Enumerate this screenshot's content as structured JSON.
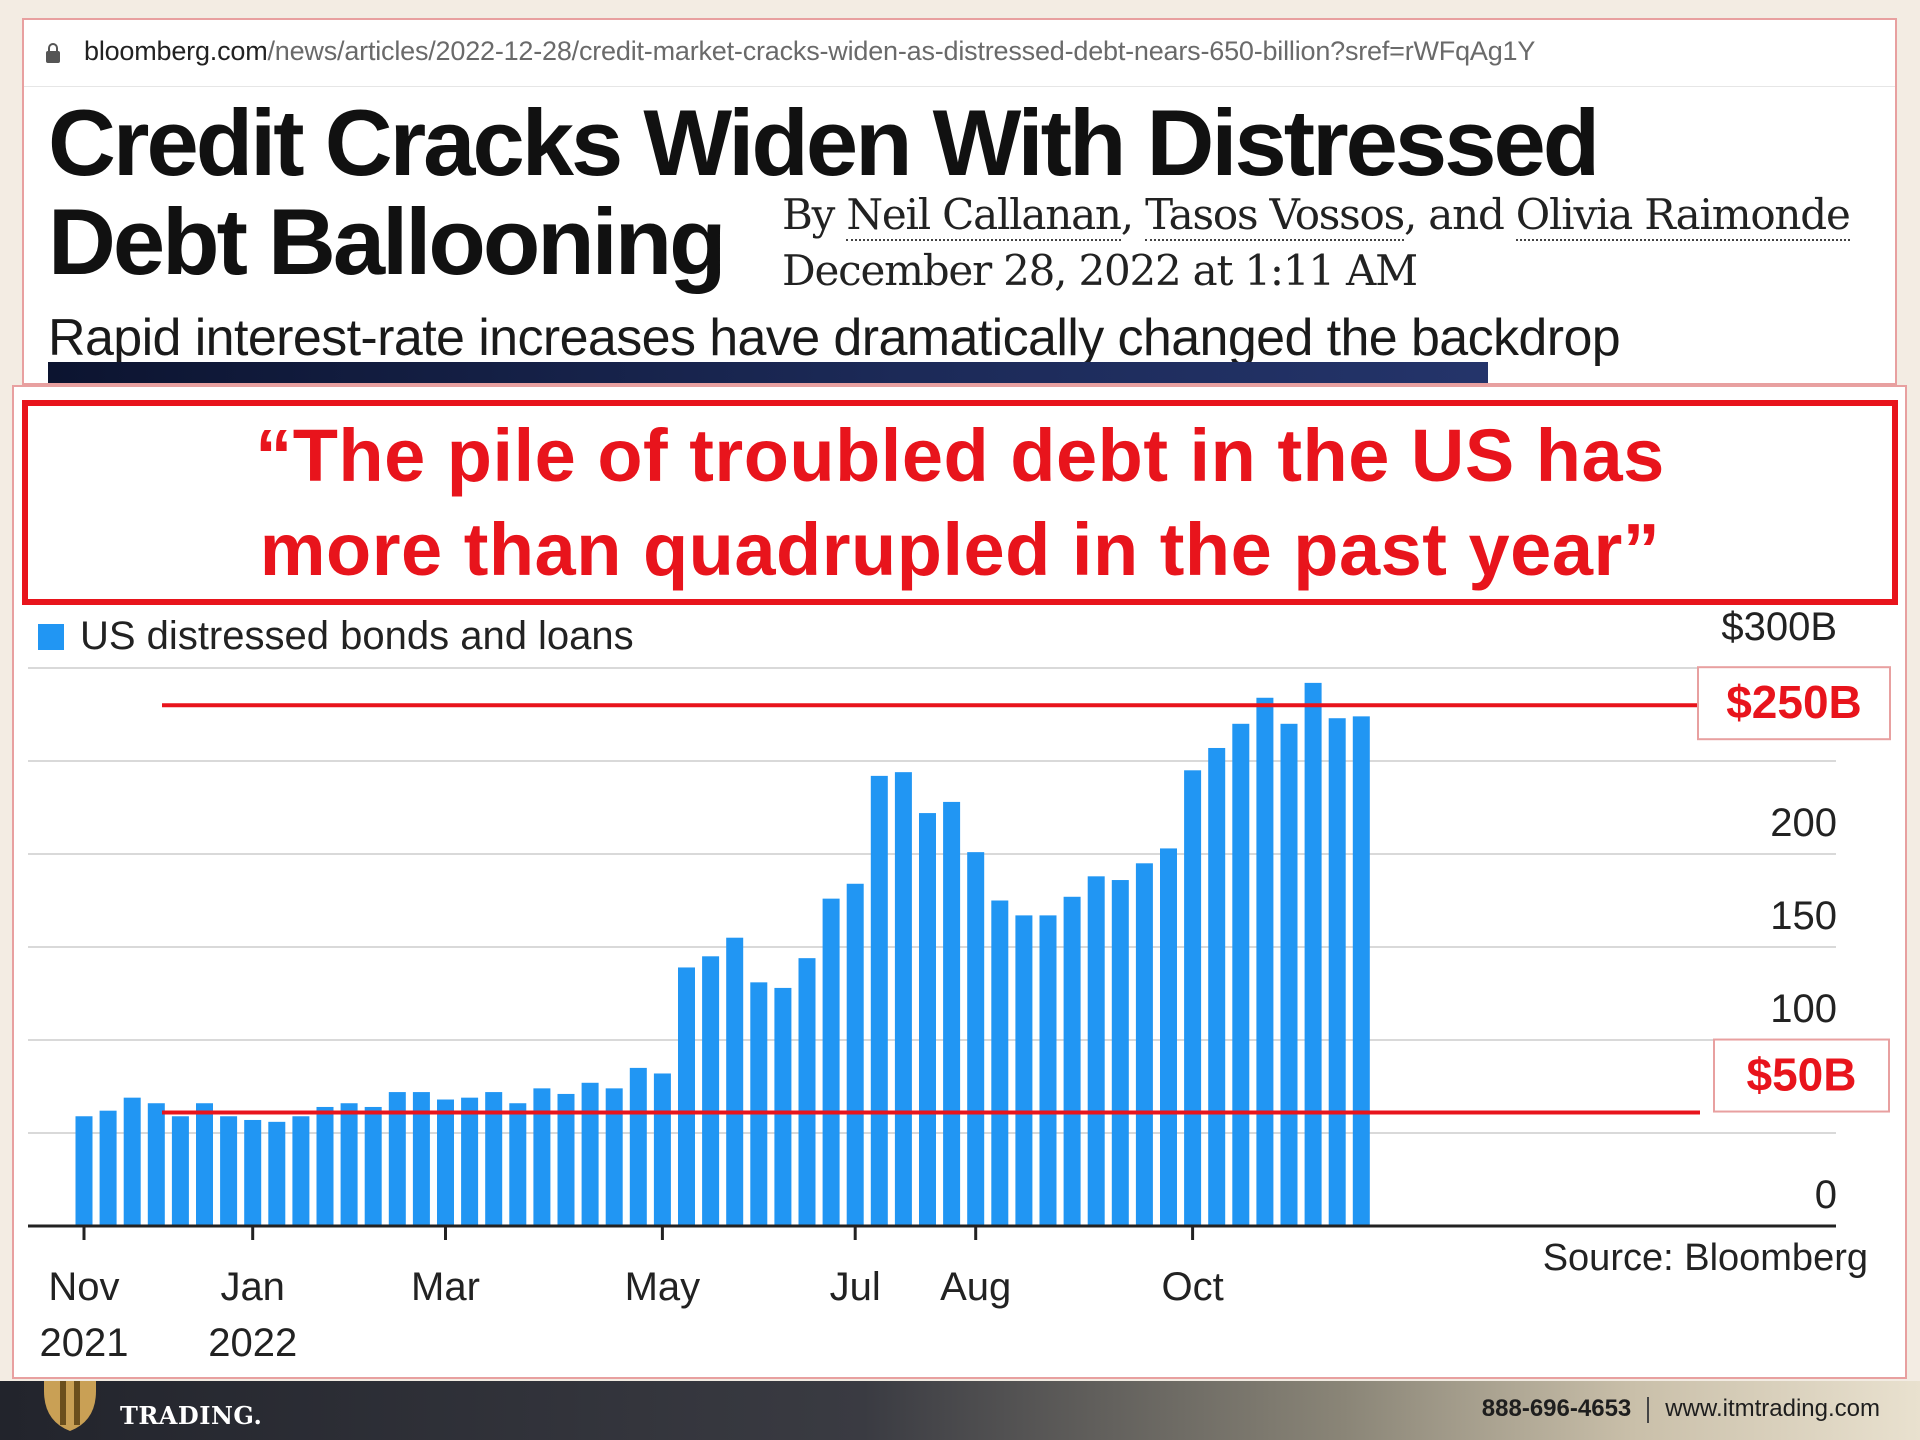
{
  "browser": {
    "url_host": "bloomberg.com",
    "url_path": "/news/articles/2022-12-28/credit-market-cracks-widen-as-distressed-debt-nears-650-billion?sref=rWFqAg1Y"
  },
  "article": {
    "headline_line1": "Credit Cracks Widen With Distressed",
    "headline_line2": "Debt Ballooning",
    "byline_prefix": "By ",
    "authors": [
      "Neil Callanan",
      "Tasos Vossos",
      "Olivia Raimonde"
    ],
    "byline_sep1": ", ",
    "byline_sep2": ", and ",
    "dateline": "December 28, 2022 at 1:11 AM",
    "subhead": "Rapid interest-rate increases have dramatically changed the backdrop"
  },
  "quote": "“The pile of troubled debt in the US has more than quadrupled in the past year”",
  "colors": {
    "bar": "#2196f3",
    "highlight": "#e8141c",
    "grid": "#d9d9d9",
    "axis": "#222222"
  },
  "chart_data": {
    "type": "bar",
    "legend": "US distressed bonds and loans",
    "legend_position": "top-left",
    "source": "Source: Bloomberg",
    "ylim": [
      0,
      300
    ],
    "y_ticks": [
      {
        "value": 0,
        "label": "0"
      },
      {
        "value": 100,
        "label": "100"
      },
      {
        "value": 150,
        "label": "150"
      },
      {
        "value": 200,
        "label": "200"
      },
      {
        "value": 300,
        "label": "$300B"
      }
    ],
    "grid": true,
    "x_ticks": [
      {
        "index": 0,
        "line1": "Nov",
        "line2": "2021"
      },
      {
        "index": 7,
        "line1": "Jan",
        "line2": "2022"
      },
      {
        "index": 15,
        "line1": "Mar",
        "line2": ""
      },
      {
        "index": 24,
        "line1": "May",
        "line2": ""
      },
      {
        "index": 32,
        "line1": "Jul",
        "line2": ""
      },
      {
        "index": 37,
        "line1": "Aug",
        "line2": ""
      },
      {
        "index": 46,
        "line1": "Oct",
        "line2": ""
      }
    ],
    "values": [
      59,
      62,
      69,
      66,
      59,
      66,
      59,
      57,
      56,
      59,
      64,
      66,
      64,
      72,
      72,
      68,
      69,
      72,
      66,
      74,
      71,
      77,
      74,
      85,
      82,
      139,
      145,
      155,
      131,
      128,
      144,
      176,
      184,
      242,
      244,
      222,
      228,
      201,
      175,
      167,
      167,
      177,
      188,
      186,
      195,
      203,
      245,
      257,
      270,
      284,
      270,
      292,
      273,
      274
    ],
    "annotations": [
      {
        "label": "$250B",
        "value": 280
      },
      {
        "label": "$50B",
        "value": 61
      }
    ]
  }
}
